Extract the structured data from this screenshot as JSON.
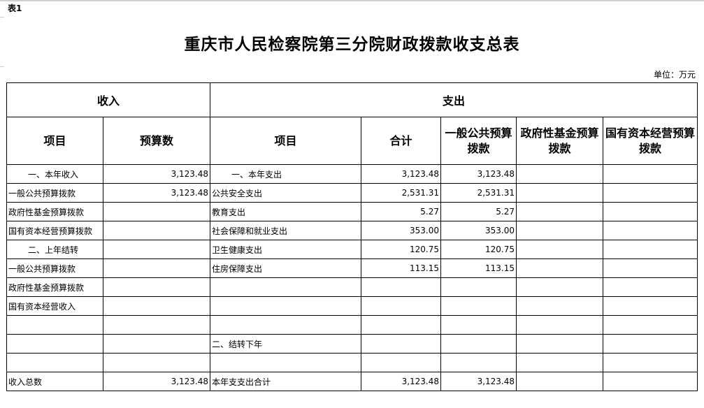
{
  "tag": "表1",
  "title": "重庆市人民检察院第三分院财政拨款收支总表",
  "unit": "单位：万元",
  "headers": {
    "income": "收入",
    "expense": "支出",
    "item": "项目",
    "budget": "预算数",
    "exp_item": "项目",
    "total": "合计",
    "general": "一般公共预算拨款",
    "fund": "政府性基金预算拨款",
    "state": "国有资本经营预算拨款"
  },
  "rows": [
    {
      "in_item": "一、本年收入",
      "in_val": "3,123.48",
      "ex_item": "一、本年支出",
      "total": "3,123.48",
      "general": "3,123.48",
      "fund": "",
      "state": ""
    },
    {
      "in_item": "一般公共预算拨款",
      "in_val": "3,123.48",
      "ex_item": "公共安全支出",
      "total": "2,531.31",
      "general": "2,531.31",
      "fund": "",
      "state": ""
    },
    {
      "in_item": "政府性基金预算拨款",
      "in_val": "",
      "ex_item": "教育支出",
      "total": "5.27",
      "general": "5.27",
      "fund": "",
      "state": ""
    },
    {
      "in_item": "国有资本经营预算拨款",
      "in_val": "",
      "ex_item": "社会保障和就业支出",
      "total": "353.00",
      "general": "353.00",
      "fund": "",
      "state": ""
    },
    {
      "in_item": "二、上年结转",
      "in_val": "",
      "ex_item": "卫生健康支出",
      "total": "120.75",
      "general": "120.75",
      "fund": "",
      "state": ""
    },
    {
      "in_item": "一般公共预算拨款",
      "in_val": "",
      "ex_item": "住房保障支出",
      "total": "113.15",
      "general": "113.15",
      "fund": "",
      "state": ""
    },
    {
      "in_item": "政府性基金预算拨款",
      "in_val": "",
      "ex_item": "",
      "total": "",
      "general": "",
      "fund": "",
      "state": ""
    },
    {
      "in_item": "国有资本经营收入",
      "in_val": "",
      "ex_item": "",
      "total": "",
      "general": "",
      "fund": "",
      "state": ""
    },
    {
      "in_item": "",
      "in_val": "",
      "ex_item": "",
      "total": "",
      "general": "",
      "fund": "",
      "state": ""
    },
    {
      "in_item": "",
      "in_val": "",
      "ex_item": "二、结转下年",
      "total": "",
      "general": "",
      "fund": "",
      "state": ""
    },
    {
      "in_item": "",
      "in_val": "",
      "ex_item": "",
      "total": "",
      "general": "",
      "fund": "",
      "state": ""
    },
    {
      "in_item": "收入总数",
      "in_val": "3,123.48",
      "ex_item": "本年支支出合计",
      "total": "3,123.48",
      "general": "3,123.48",
      "fund": "",
      "state": ""
    }
  ]
}
